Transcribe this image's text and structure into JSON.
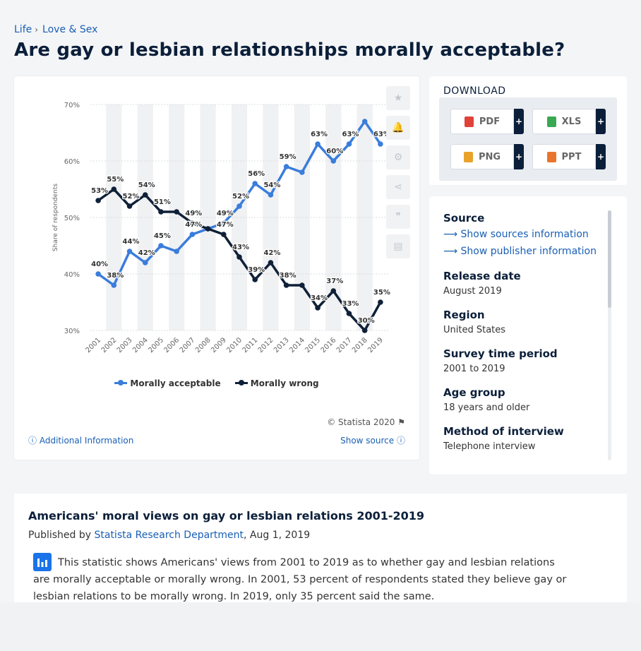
{
  "breadcrumb": {
    "level1": "Life",
    "level2": "Love & Sex"
  },
  "page_title": "Are gay or lesbian relationships morally acceptable?",
  "toolbar": [
    "star-icon",
    "bell-icon",
    "gear-icon",
    "share-icon",
    "quote-icon",
    "print-icon"
  ],
  "chart": {
    "copyright": "© Statista 2020",
    "additional_info": "Additional Information",
    "show_source": "Show source"
  },
  "chart_data": {
    "type": "line",
    "title": "",
    "xlabel": "",
    "ylabel": "Share of respondents",
    "ylim": [
      30,
      70
    ],
    "yticks": [
      "30%",
      "40%",
      "50%",
      "60%",
      "70%"
    ],
    "grid": true,
    "legend_position": "bottom",
    "x": [
      "2001",
      "2002",
      "2003",
      "2004",
      "2005",
      "2006",
      "2007",
      "2008",
      "2009",
      "2010",
      "2011",
      "2012",
      "2013",
      "2014",
      "2015",
      "2016",
      "2017",
      "2018",
      "2019"
    ],
    "series": [
      {
        "name": "Morally acceptable",
        "color": "#3a7ddb",
        "values": [
          40,
          38,
          44,
          42,
          45,
          44,
          47,
          48,
          49,
          52,
          56,
          54,
          59,
          58,
          63,
          60,
          63,
          67,
          63
        ],
        "labels": [
          "40%",
          "38%",
          "44%",
          "42%",
          "45%",
          "",
          "47%",
          "",
          "49%",
          "52%",
          "56%",
          "54%",
          "59%",
          "",
          "63%",
          "60%",
          "63%",
          "",
          "63%"
        ]
      },
      {
        "name": "Morally wrong",
        "color": "#0f2038",
        "values": [
          53,
          55,
          52,
          54,
          51,
          51,
          49,
          48,
          47,
          43,
          39,
          42,
          38,
          38,
          34,
          37,
          33,
          30,
          35
        ],
        "labels": [
          "53%",
          "55%",
          "52%",
          "54%",
          "51%",
          "",
          "49%",
          "",
          "47%",
          "43%",
          "39%",
          "42%",
          "38%",
          "",
          "34%",
          "37%",
          "33%",
          "30%",
          "35%"
        ]
      }
    ]
  },
  "download": {
    "title": "DOWNLOAD",
    "buttons": [
      {
        "label": "PDF",
        "color": "#e0423a"
      },
      {
        "label": "XLS",
        "color": "#3aa853"
      },
      {
        "label": "PNG",
        "color": "#e8a32b"
      },
      {
        "label": "PPT",
        "color": "#e8752b"
      }
    ],
    "plus": "+"
  },
  "info": {
    "source_label": "Source",
    "show_sources": "Show sources information",
    "show_publisher": "Show publisher information",
    "release_label": "Release date",
    "release_value": "August 2019",
    "region_label": "Region",
    "region_value": "United States",
    "period_label": "Survey time period",
    "period_value": "2001 to 2019",
    "age_label": "Age group",
    "age_value": "18 years and older",
    "method_label": "Method of interview",
    "method_value": "Telephone interview"
  },
  "description": {
    "title": "Americans' moral views on gay or lesbian relations 2001-2019",
    "published_by": "Published by",
    "publisher": "Statista Research Department",
    "date": ", Aug 1, 2019",
    "text": "This statistic shows Americans' views from 2001 to 2019 as to whether gay and lesbian relations are morally acceptable or morally wrong. In 2001, 53 percent of respondents stated they believe gay or lesbian relations to be morally wrong. In 2019, only 35 percent said the same."
  }
}
